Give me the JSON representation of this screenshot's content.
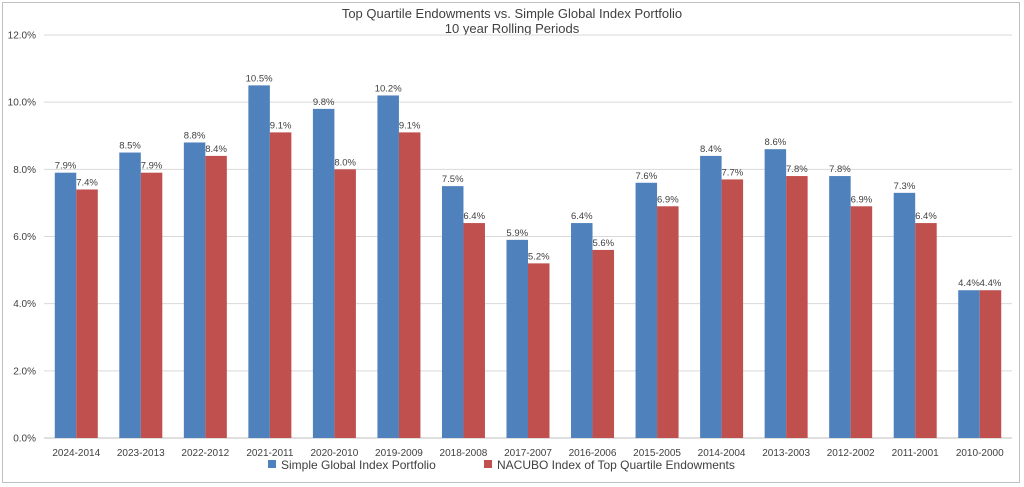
{
  "chart_data": {
    "type": "bar",
    "title": "Top Quartile Endowments vs. Simple Global Index Portfolio",
    "subtitle": "10 year Rolling Periods",
    "categories": [
      "2024-2014",
      "2023-2013",
      "2022-2012",
      "2021-2011",
      "2020-2010",
      "2019-2009",
      "2018-2008",
      "2017-2007",
      "2016-2006",
      "2015-2005",
      "2014-2004",
      "2013-2003",
      "2012-2002",
      "2011-2001",
      "2010-2000"
    ],
    "series": [
      {
        "name": "Simple Global Index Portfolio",
        "color": "#4f81bd",
        "values": [
          7.9,
          8.5,
          8.8,
          10.5,
          9.8,
          10.2,
          7.5,
          5.9,
          6.4,
          7.6,
          8.4,
          8.6,
          7.8,
          7.3,
          4.4
        ],
        "labels": [
          "7.9%",
          "8.5%",
          "8.8%",
          "10.5%",
          "9.8%",
          "10.2%",
          "7.5%",
          "5.9%",
          "6.4%",
          "7.6%",
          "8.4%",
          "8.6%",
          "7.8%",
          "7.3%",
          "4.4%"
        ]
      },
      {
        "name": "NACUBO Index of Top Quartile Endowments",
        "color": "#c0504d",
        "values": [
          7.4,
          7.9,
          8.4,
          9.1,
          8.0,
          9.1,
          6.4,
          5.2,
          5.6,
          6.9,
          7.7,
          7.8,
          6.9,
          6.4,
          4.4
        ],
        "labels": [
          "7.4%",
          "7.9%",
          "8.4%",
          "9.1%",
          "8.0%",
          "9.1%",
          "6.4%",
          "5.2%",
          "5.6%",
          "6.9%",
          "7.7%",
          "7.8%",
          "6.9%",
          "6.4%",
          "4.4%"
        ]
      }
    ],
    "ylim": [
      0,
      12
    ],
    "yticks": [
      0,
      2,
      4,
      6,
      8,
      10,
      12
    ],
    "ytick_labels": [
      "0.0%",
      "2.0%",
      "4.0%",
      "6.0%",
      "8.0%",
      "10.0%",
      "12.0%"
    ],
    "grid": true,
    "legend_position": "bottom"
  }
}
